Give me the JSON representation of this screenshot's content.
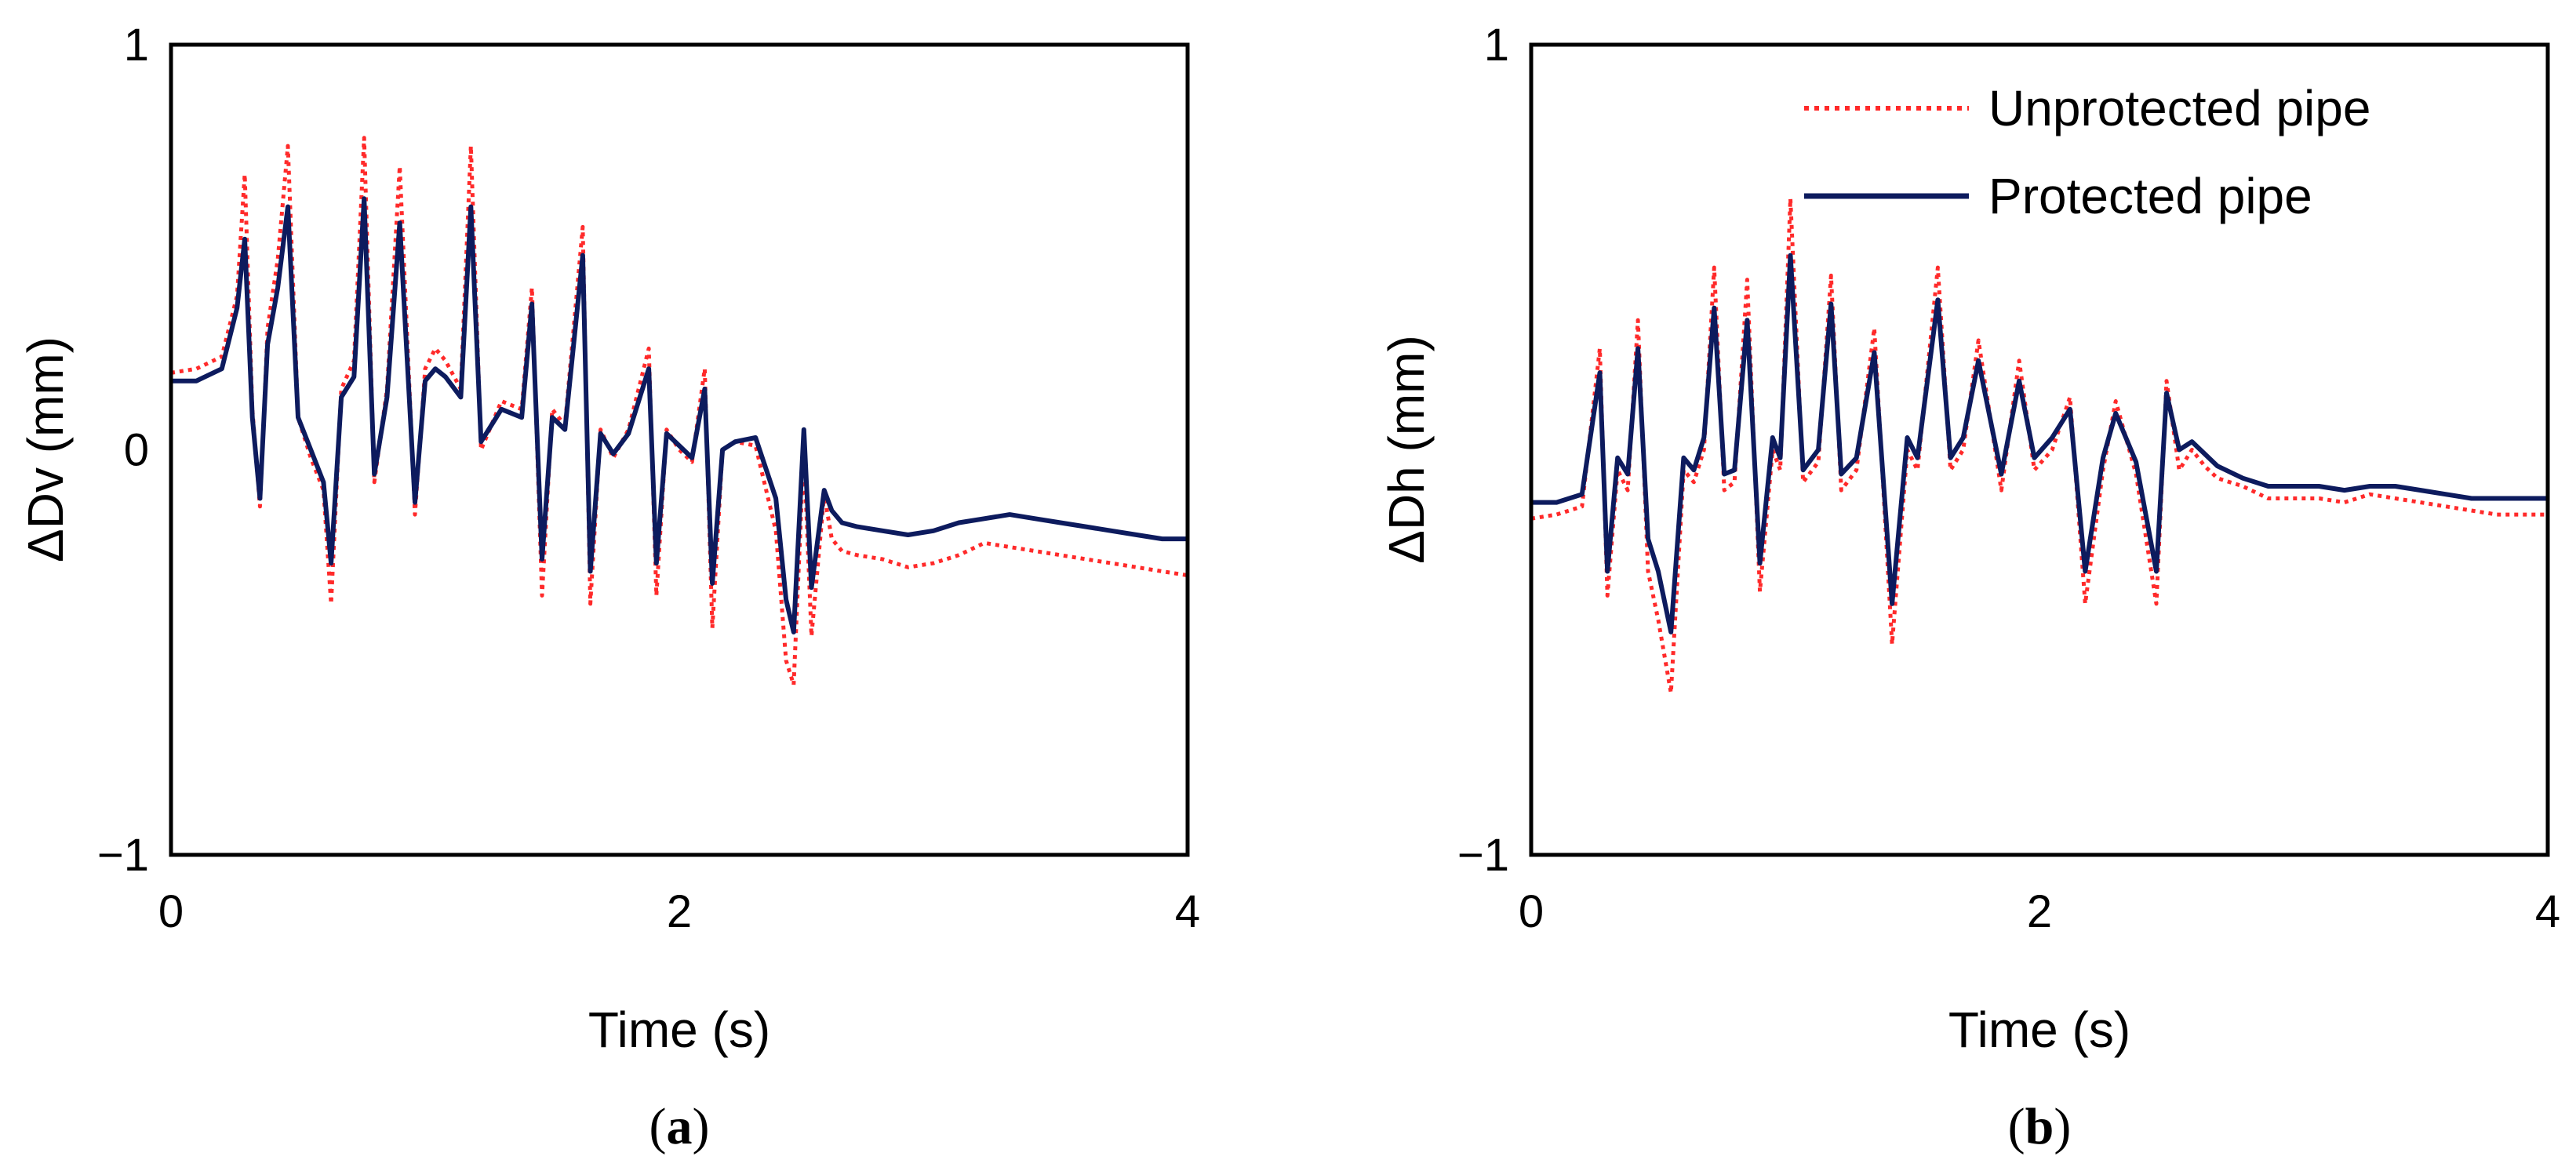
{
  "colors": {
    "unprotected": "#ff2a2a",
    "protected": "#0d1b5e",
    "axis": "#000000"
  },
  "legend": {
    "unprotected_label": "Unprotected pipe",
    "protected_label": "Protected pipe"
  },
  "chart_data": [
    {
      "id": "a",
      "type": "line",
      "panel_label_open": "(",
      "panel_label_letter": "a",
      "panel_label_close": ")",
      "xlabel": "Time (s)",
      "ylabel": "ΔDv (mm)",
      "xlim": [
        0,
        4
      ],
      "ylim": [
        -1,
        1
      ],
      "xticks": [
        {
          "v": 0,
          "t": "0"
        },
        {
          "v": 2,
          "t": "2"
        },
        {
          "v": 4,
          "t": "4"
        }
      ],
      "yticks": [
        {
          "v": 1,
          "t": "1"
        },
        {
          "v": 0,
          "t": "0"
        },
        {
          "v": -1,
          "t": "−1"
        }
      ],
      "grid": false,
      "series": [
        {
          "name": "Unprotected pipe",
          "style": "dotted",
          "x": [
            0,
            0.1,
            0.2,
            0.26,
            0.29,
            0.32,
            0.35,
            0.38,
            0.42,
            0.46,
            0.5,
            0.55,
            0.6,
            0.63,
            0.67,
            0.72,
            0.76,
            0.8,
            0.85,
            0.9,
            0.96,
            1.0,
            1.04,
            1.08,
            1.14,
            1.18,
            1.22,
            1.3,
            1.38,
            1.42,
            1.46,
            1.5,
            1.55,
            1.62,
            1.65,
            1.69,
            1.74,
            1.8,
            1.88,
            1.91,
            1.95,
            2.0,
            2.05,
            2.1,
            2.13,
            2.17,
            2.22,
            2.3,
            2.38,
            2.42,
            2.45,
            2.49,
            2.52,
            2.57,
            2.6,
            2.64,
            2.7,
            2.8,
            2.9,
            3.0,
            3.1,
            3.2,
            3.3,
            3.4,
            3.5,
            3.6,
            3.7,
            3.8,
            3.9,
            4.0
          ],
          "y": [
            0.19,
            0.2,
            0.23,
            0.38,
            0.68,
            0.1,
            -0.14,
            0.3,
            0.47,
            0.75,
            0.08,
            -0.02,
            -0.1,
            -0.38,
            0.15,
            0.22,
            0.77,
            -0.08,
            0.15,
            0.7,
            -0.16,
            0.2,
            0.25,
            0.22,
            0.15,
            0.75,
            0.0,
            0.12,
            0.1,
            0.4,
            -0.36,
            0.1,
            0.06,
            0.55,
            -0.38,
            0.05,
            -0.02,
            0.05,
            0.25,
            -0.36,
            0.05,
            0.0,
            -0.03,
            0.2,
            -0.44,
            0.0,
            0.02,
            0.01,
            -0.2,
            -0.52,
            -0.58,
            0.0,
            -0.46,
            -0.11,
            -0.22,
            -0.25,
            -0.26,
            -0.27,
            -0.29,
            -0.28,
            -0.26,
            -0.23,
            -0.24,
            -0.25,
            -0.26,
            -0.27,
            -0.28,
            -0.29,
            -0.3,
            -0.31
          ]
        },
        {
          "name": "Protected pipe",
          "style": "solid",
          "x": [
            0,
            0.1,
            0.2,
            0.26,
            0.29,
            0.32,
            0.35,
            0.38,
            0.42,
            0.46,
            0.5,
            0.55,
            0.6,
            0.63,
            0.67,
            0.72,
            0.76,
            0.8,
            0.85,
            0.9,
            0.96,
            1.0,
            1.04,
            1.08,
            1.14,
            1.18,
            1.22,
            1.3,
            1.38,
            1.42,
            1.46,
            1.5,
            1.55,
            1.62,
            1.65,
            1.69,
            1.74,
            1.8,
            1.88,
            1.91,
            1.95,
            2.0,
            2.05,
            2.1,
            2.13,
            2.17,
            2.22,
            2.3,
            2.38,
            2.42,
            2.45,
            2.49,
            2.52,
            2.57,
            2.6,
            2.64,
            2.7,
            2.8,
            2.9,
            3.0,
            3.1,
            3.2,
            3.3,
            3.4,
            3.5,
            3.6,
            3.7,
            3.8,
            3.9,
            4.0
          ],
          "y": [
            0.17,
            0.17,
            0.2,
            0.35,
            0.52,
            0.08,
            -0.12,
            0.26,
            0.4,
            0.6,
            0.08,
            0.0,
            -0.08,
            -0.28,
            0.13,
            0.18,
            0.62,
            -0.06,
            0.13,
            0.56,
            -0.13,
            0.17,
            0.2,
            0.18,
            0.13,
            0.6,
            0.02,
            0.1,
            0.08,
            0.36,
            -0.27,
            0.08,
            0.05,
            0.48,
            -0.3,
            0.04,
            -0.01,
            0.04,
            0.2,
            -0.28,
            0.04,
            0.01,
            -0.02,
            0.15,
            -0.33,
            0.0,
            0.02,
            0.03,
            -0.12,
            -0.37,
            -0.45,
            0.05,
            -0.34,
            -0.1,
            -0.15,
            -0.18,
            -0.19,
            -0.2,
            -0.21,
            -0.2,
            -0.18,
            -0.17,
            -0.16,
            -0.17,
            -0.18,
            -0.19,
            -0.2,
            -0.21,
            -0.22,
            -0.22
          ]
        }
      ]
    },
    {
      "id": "b",
      "type": "line",
      "panel_label_open": "(",
      "panel_label_letter": "b",
      "panel_label_close": ")",
      "xlabel": "Time (s)",
      "ylabel": "ΔDh (mm)",
      "xlim": [
        0,
        4
      ],
      "ylim": [
        -1,
        1
      ],
      "xticks": [
        {
          "v": 0,
          "t": "0"
        },
        {
          "v": 2,
          "t": "2"
        },
        {
          "v": 4,
          "t": "4"
        }
      ],
      "yticks": [
        {
          "v": 1,
          "t": "1"
        },
        {
          "v": -1,
          "t": "−1"
        }
      ],
      "grid": false,
      "legend_position": "top-right",
      "series": [
        {
          "name": "Unprotected pipe",
          "style": "dotted",
          "x": [
            0,
            0.1,
            0.2,
            0.27,
            0.3,
            0.34,
            0.38,
            0.42,
            0.46,
            0.5,
            0.55,
            0.6,
            0.64,
            0.68,
            0.72,
            0.76,
            0.8,
            0.85,
            0.9,
            0.95,
            0.98,
            1.02,
            1.07,
            1.13,
            1.18,
            1.22,
            1.28,
            1.35,
            1.42,
            1.48,
            1.52,
            1.6,
            1.65,
            1.7,
            1.76,
            1.85,
            1.92,
            1.98,
            2.05,
            2.12,
            2.18,
            2.25,
            2.3,
            2.38,
            2.46,
            2.5,
            2.55,
            2.6,
            2.65,
            2.7,
            2.8,
            2.9,
            3.0,
            3.1,
            3.2,
            3.3,
            3.4,
            3.5,
            3.6,
            3.7,
            3.8,
            3.9,
            4.0
          ],
          "y": [
            -0.17,
            -0.16,
            -0.14,
            0.25,
            -0.36,
            -0.05,
            -0.1,
            0.32,
            -0.3,
            -0.42,
            -0.6,
            -0.05,
            -0.08,
            0.0,
            0.45,
            -0.1,
            -0.08,
            0.42,
            -0.35,
            0.0,
            -0.05,
            0.62,
            -0.08,
            -0.03,
            0.43,
            -0.1,
            -0.05,
            0.3,
            -0.48,
            0.0,
            -0.05,
            0.45,
            -0.05,
            0.0,
            0.27,
            -0.1,
            0.22,
            -0.05,
            0.0,
            0.13,
            -0.38,
            -0.05,
            0.12,
            -0.06,
            -0.38,
            0.17,
            -0.05,
            0.0,
            -0.04,
            -0.07,
            -0.09,
            -0.12,
            -0.12,
            -0.12,
            -0.13,
            -0.11,
            -0.12,
            -0.13,
            -0.14,
            -0.15,
            -0.16,
            -0.16,
            -0.16
          ]
        },
        {
          "name": "Protected pipe",
          "style": "solid",
          "x": [
            0,
            0.1,
            0.2,
            0.27,
            0.3,
            0.34,
            0.38,
            0.42,
            0.46,
            0.5,
            0.55,
            0.6,
            0.64,
            0.68,
            0.72,
            0.76,
            0.8,
            0.85,
            0.9,
            0.95,
            0.98,
            1.02,
            1.07,
            1.13,
            1.18,
            1.22,
            1.28,
            1.35,
            1.42,
            1.48,
            1.52,
            1.6,
            1.65,
            1.7,
            1.76,
            1.85,
            1.92,
            1.98,
            2.05,
            2.12,
            2.18,
            2.25,
            2.3,
            2.38,
            2.46,
            2.5,
            2.55,
            2.6,
            2.65,
            2.7,
            2.8,
            2.9,
            3.0,
            3.1,
            3.2,
            3.3,
            3.4,
            3.5,
            3.6,
            3.7,
            3.8,
            3.9,
            4.0
          ],
          "y": [
            -0.13,
            -0.13,
            -0.11,
            0.19,
            -0.3,
            -0.02,
            -0.06,
            0.25,
            -0.22,
            -0.3,
            -0.45,
            -0.02,
            -0.05,
            0.03,
            0.35,
            -0.06,
            -0.05,
            0.32,
            -0.28,
            0.03,
            -0.02,
            0.48,
            -0.05,
            0.0,
            0.36,
            -0.06,
            -0.02,
            0.24,
            -0.38,
            0.03,
            -0.02,
            0.37,
            -0.02,
            0.03,
            0.22,
            -0.06,
            0.17,
            -0.02,
            0.03,
            0.1,
            -0.3,
            -0.02,
            0.09,
            -0.03,
            -0.3,
            0.14,
            0.0,
            0.02,
            -0.01,
            -0.04,
            -0.07,
            -0.09,
            -0.09,
            -0.09,
            -0.1,
            -0.09,
            -0.09,
            -0.1,
            -0.11,
            -0.12,
            -0.12,
            -0.12,
            -0.12
          ]
        }
      ]
    }
  ]
}
